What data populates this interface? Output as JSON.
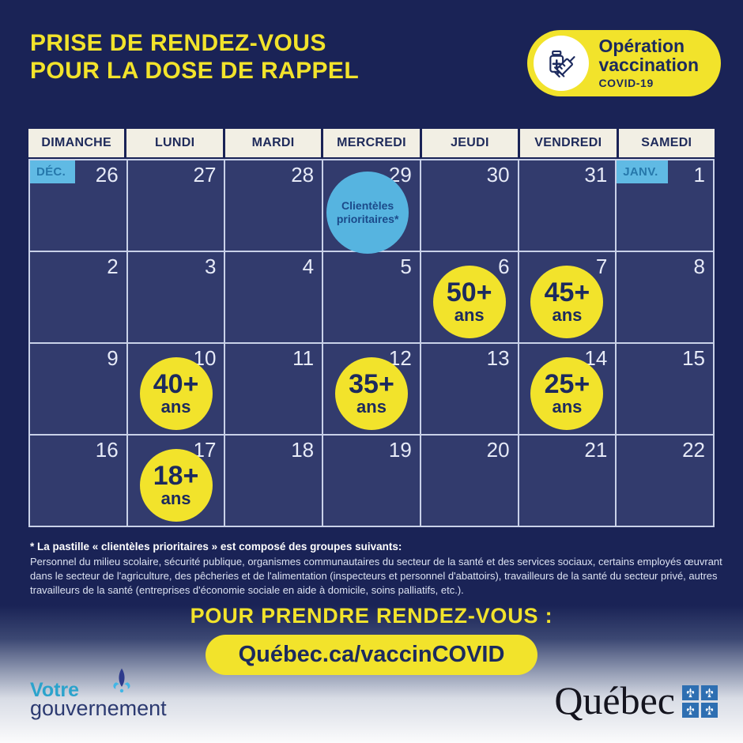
{
  "title": {
    "line1": "PRISE DE RENDEZ-VOUS",
    "line2": "POUR LA DOSE DE RAPPEL"
  },
  "badge": {
    "line1": "Opération",
    "line2": "vaccination",
    "line3": "COVID-19"
  },
  "calendar": {
    "day_headers": [
      "DIMANCHE",
      "LUNDI",
      "MARDI",
      "MERCREDI",
      "JEUDI",
      "VENDREDI",
      "SAMEDI"
    ],
    "weeks": [
      [
        {
          "date": "26",
          "month_label": "DÉC."
        },
        {
          "date": "27"
        },
        {
          "date": "28"
        },
        {
          "date": "29",
          "bubble": {
            "type": "priority",
            "lines": [
              "Clientèles",
              "prioritaires*"
            ]
          }
        },
        {
          "date": "30"
        },
        {
          "date": "31"
        },
        {
          "date": "1",
          "month_label": "JANV."
        }
      ],
      [
        {
          "date": "2"
        },
        {
          "date": "3"
        },
        {
          "date": "4"
        },
        {
          "date": "5"
        },
        {
          "date": "6",
          "bubble": {
            "type": "age",
            "age": "50+",
            "unit": "ans"
          }
        },
        {
          "date": "7",
          "bubble": {
            "type": "age",
            "age": "45+",
            "unit": "ans"
          }
        },
        {
          "date": "8"
        }
      ],
      [
        {
          "date": "9"
        },
        {
          "date": "10",
          "bubble": {
            "type": "age",
            "age": "40+",
            "unit": "ans"
          }
        },
        {
          "date": "11"
        },
        {
          "date": "12",
          "bubble": {
            "type": "age",
            "age": "35+",
            "unit": "ans"
          }
        },
        {
          "date": "13"
        },
        {
          "date": "14",
          "bubble": {
            "type": "age",
            "age": "25+",
            "unit": "ans"
          }
        },
        {
          "date": "15"
        }
      ],
      [
        {
          "date": "16"
        },
        {
          "date": "17",
          "bubble": {
            "type": "age",
            "age": "18+",
            "unit": "ans"
          }
        },
        {
          "date": "18"
        },
        {
          "date": "19"
        },
        {
          "date": "20"
        },
        {
          "date": "21"
        },
        {
          "date": "22"
        }
      ]
    ]
  },
  "footnote": {
    "heading": "* La pastille « clientèles prioritaires » est composé des groupes suivants:",
    "body": "Personnel du milieu scolaire, sécurité publique, organismes communautaires du secteur de la santé et des services sociaux, certains employés œuvrant dans le secteur de l'agriculture, des pêcheries et de l'alimentation (inspecteurs et personnel d'abattoirs), travailleurs de la santé du secteur privé, autres travailleurs de la santé (entreprises d'économie sociale en aide à domicile, soins palliatifs, etc.)."
  },
  "cta": {
    "label": "POUR PRENDRE RENDEZ-VOUS :",
    "url_label": "Québec.ca/vaccinCOVID"
  },
  "footer": {
    "gov_logo": {
      "line1": "Votre",
      "line2": "gouvernement"
    },
    "quebec_logo": {
      "wordmark": "Québec"
    }
  },
  "colors": {
    "background_navy": "#1a2356",
    "cell_navy": "#323b6d",
    "grid_line": "#c9d1e8",
    "header_cream": "#f2efe4",
    "accent_yellow": "#f2e32b",
    "light_blue": "#56b4e0",
    "dark_text": "#1c2a5e"
  }
}
